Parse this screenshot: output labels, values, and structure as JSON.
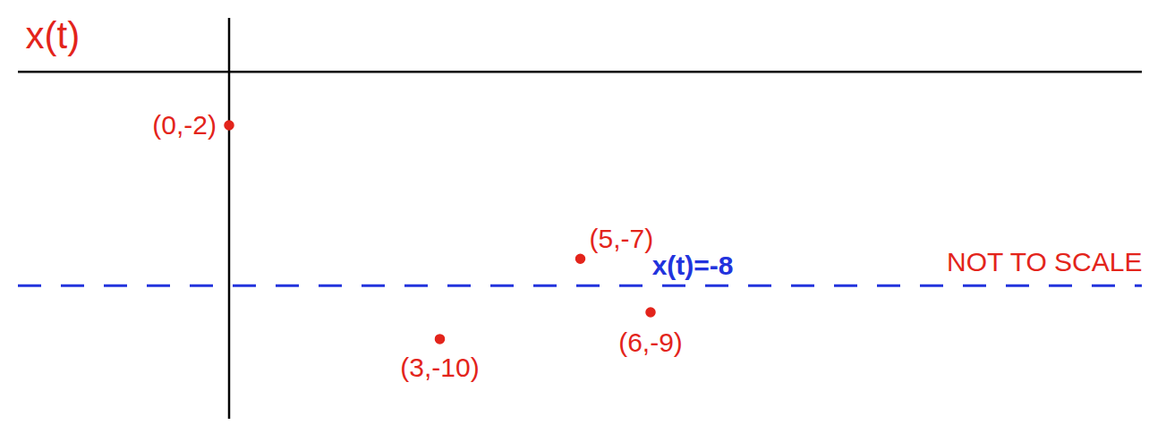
{
  "chart_data": {
    "type": "scatter",
    "ylabel": "x(t)",
    "x": [
      0,
      3,
      5,
      6
    ],
    "values": [
      -2,
      -10,
      -7,
      -9
    ],
    "value_labels": [
      "(0,-2)",
      "(3,-10)",
      "(5,-7)",
      "(6,-9)"
    ],
    "data_labels": true,
    "color": "#e3241b",
    "marker": "dot",
    "xlim": [
      -3,
      13
    ],
    "ylim": [
      -13,
      2
    ],
    "tick_labels": false,
    "annotations": [
      {
        "type": "hline",
        "y": -8,
        "text": "x(t)=-8",
        "color": "#2233dd",
        "line_style": "dashed"
      },
      {
        "type": "text",
        "text": "NOT TO SCALE",
        "color": "#e3241b"
      }
    ]
  }
}
